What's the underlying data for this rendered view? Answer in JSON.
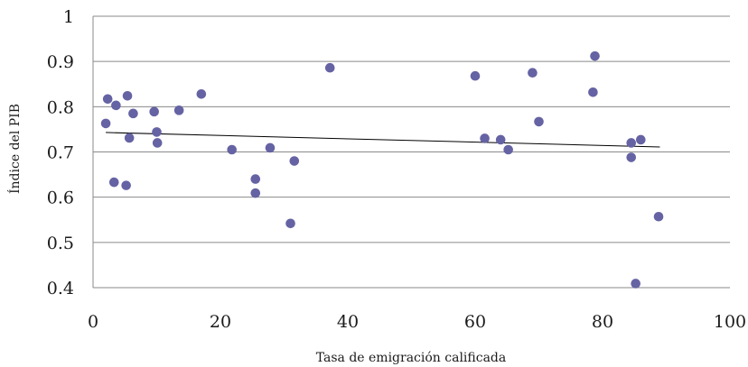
{
  "chart_data": {
    "type": "scatter",
    "xlabel": "Tasa de emigración calificada",
    "ylabel": "Índice del PIB",
    "xlim": [
      0,
      100
    ],
    "ylim": [
      0.4,
      1
    ],
    "x_ticks": [
      "0",
      "20",
      "40",
      "60",
      "80",
      "100"
    ],
    "y_ticks": [
      "0.4",
      "0.5",
      "0.6",
      "0.7",
      "0.8",
      "0.9",
      "1"
    ],
    "grid": "horizontal",
    "point_color": "#6563a3",
    "trendline": {
      "x": [
        2,
        89
      ],
      "y": [
        0.743,
        0.711
      ]
    },
    "points": [
      {
        "x": 2.0,
        "y": 0.763
      },
      {
        "x": 2.3,
        "y": 0.817
      },
      {
        "x": 3.3,
        "y": 0.633
      },
      {
        "x": 3.6,
        "y": 0.803
      },
      {
        "x": 5.2,
        "y": 0.626
      },
      {
        "x": 5.4,
        "y": 0.824
      },
      {
        "x": 5.7,
        "y": 0.731
      },
      {
        "x": 6.3,
        "y": 0.785
      },
      {
        "x": 9.6,
        "y": 0.789
      },
      {
        "x": 10.0,
        "y": 0.744
      },
      {
        "x": 10.1,
        "y": 0.72
      },
      {
        "x": 13.5,
        "y": 0.792
      },
      {
        "x": 17.0,
        "y": 0.828
      },
      {
        "x": 21.8,
        "y": 0.705
      },
      {
        "x": 25.5,
        "y": 0.64
      },
      {
        "x": 25.5,
        "y": 0.609
      },
      {
        "x": 27.8,
        "y": 0.709
      },
      {
        "x": 31.0,
        "y": 0.542
      },
      {
        "x": 31.6,
        "y": 0.68
      },
      {
        "x": 37.2,
        "y": 0.886
      },
      {
        "x": 60.0,
        "y": 0.868
      },
      {
        "x": 61.5,
        "y": 0.73
      },
      {
        "x": 64.0,
        "y": 0.727
      },
      {
        "x": 65.2,
        "y": 0.705
      },
      {
        "x": 69.0,
        "y": 0.875
      },
      {
        "x": 70.0,
        "y": 0.767
      },
      {
        "x": 78.5,
        "y": 0.832
      },
      {
        "x": 78.8,
        "y": 0.912
      },
      {
        "x": 84.5,
        "y": 0.72
      },
      {
        "x": 84.5,
        "y": 0.688
      },
      {
        "x": 85.2,
        "y": 0.409
      },
      {
        "x": 86.0,
        "y": 0.727
      },
      {
        "x": 88.8,
        "y": 0.557
      }
    ]
  }
}
